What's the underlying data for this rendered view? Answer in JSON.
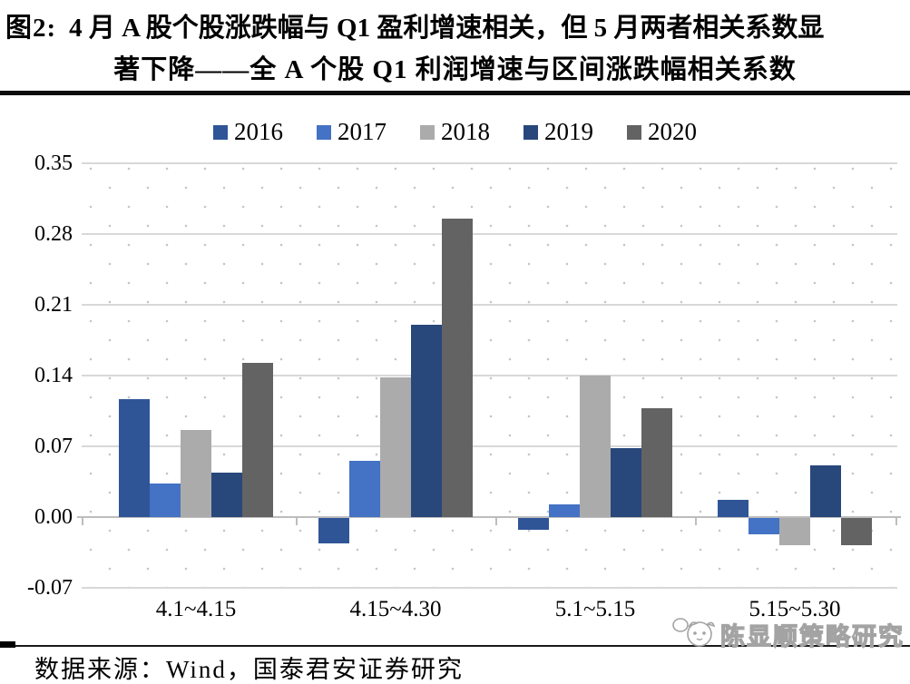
{
  "figure": {
    "label": "图2:",
    "title_line1": "4 月 A 股个股涨跌幅与 Q1 盈利增速相关，但 5 月两者相关系数显",
    "title_line2": "著下降——全 A 个股 Q1 利润增速与区间涨跌幅相关系数",
    "source": "数据来源：Wind，国泰君安证券研究",
    "watermark_text": "陈显顺策略研究"
  },
  "chart_data": {
    "type": "bar",
    "title": "全 A 个股 Q1 利润增速与区间涨跌幅相关系数",
    "categories": [
      "4.1~4.15",
      "4.15~4.30",
      "5.1~5.15",
      "5.15~5.30"
    ],
    "series": [
      {
        "name": "2016",
        "color": "#2F5597",
        "values": [
          0.117,
          -0.025,
          -0.012,
          0.017
        ]
      },
      {
        "name": "2017",
        "color": "#4472C4",
        "values": [
          0.033,
          0.056,
          0.013,
          -0.016
        ]
      },
      {
        "name": "2018",
        "color": "#ABABAB",
        "values": [
          0.086,
          0.138,
          0.14,
          -0.027
        ]
      },
      {
        "name": "2019",
        "color": "#28477B",
        "values": [
          0.044,
          0.19,
          0.068,
          0.051
        ]
      },
      {
        "name": "2020",
        "color": "#636363",
        "values": [
          0.153,
          0.295,
          0.108,
          -0.027
        ]
      }
    ],
    "ytick_labels": [
      "0.35",
      "0.28",
      "0.21",
      "0.14",
      "0.07",
      "0.00",
      "-0.07"
    ],
    "ylim": [
      -0.07,
      0.35
    ],
    "ytick_step": 0.07,
    "grid": true,
    "legend_position": "top",
    "plot_background": "dotted-pattern"
  }
}
